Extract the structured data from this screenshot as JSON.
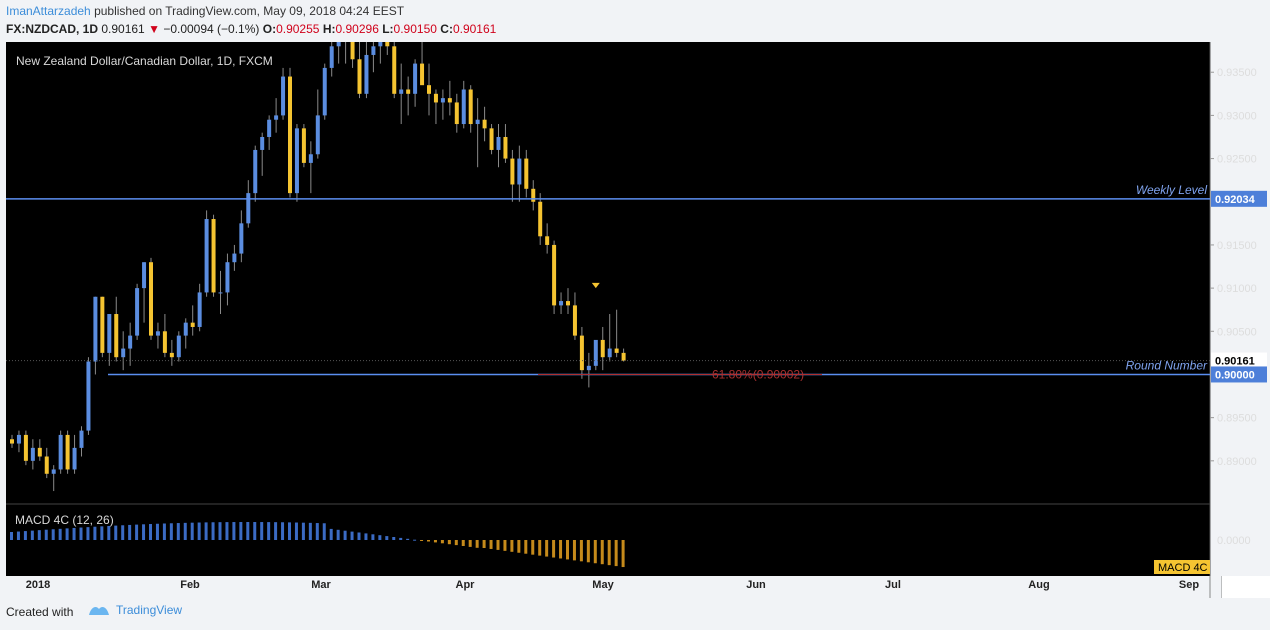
{
  "header": {
    "author": "ImanAttarzadeh",
    "published": "published on TradingView.com, May 09, 2018 04:24 EEST",
    "symbol": "FX:NZDCAD, 1D",
    "last": "0.90161",
    "change_arrow": "▼",
    "change": "−0.00094 (−0.1%)",
    "o_label": "O:",
    "o_val": "0.90255",
    "h_label": "H:",
    "h_val": "0.90296",
    "l_label": "L:",
    "l_val": "0.90150",
    "c_label": "C:",
    "c_val": "0.90161"
  },
  "footer": {
    "created_with": "Created with",
    "brand": "TradingView"
  },
  "colors": {
    "up": "#5b8de0",
    "down": "#f5c431",
    "level_line": "#5b8ef0",
    "fib_line": "#b03030",
    "price_tag": "#4d7fd9",
    "macd_up": "#3b6bc4",
    "macd_down": "#c58a1b"
  },
  "chart_data": {
    "type": "candlestick",
    "title": "New Zealand Dollar/Canadian Dollar, 1D, FXCM",
    "y_range": [
      0.885,
      0.9385
    ],
    "y_ticks": [
      "0.93500",
      "0.93000",
      "0.92500",
      "0.92034",
      "0.91500",
      "0.91000",
      "0.90500",
      "0.90161",
      "0.90000",
      "0.89500",
      "0.89000"
    ],
    "x_labels": [
      "2018",
      "Feb",
      "Mar",
      "Apr",
      "May",
      "Jun",
      "Jul",
      "Aug",
      "Sep"
    ],
    "levels": [
      {
        "label": "Weekly Level",
        "value": 0.92034
      },
      {
        "label": "Round Number",
        "value": 0.9
      }
    ],
    "fib_label": "61.80%(0.90002)",
    "current_price": "0.90161",
    "macd": {
      "label": "MACD 4C (12, 26)",
      "zero_tick": "0.0000",
      "tag": "MACD 4C"
    },
    "candles": [
      [
        0.8925,
        0.893,
        0.8915,
        0.892
      ],
      [
        0.892,
        0.8935,
        0.891,
        0.893
      ],
      [
        0.893,
        0.8935,
        0.8895,
        0.89
      ],
      [
        0.89,
        0.8925,
        0.889,
        0.8915
      ],
      [
        0.8915,
        0.8925,
        0.89,
        0.8905
      ],
      [
        0.8905,
        0.8915,
        0.888,
        0.8885
      ],
      [
        0.8885,
        0.8895,
        0.8865,
        0.889
      ],
      [
        0.889,
        0.8935,
        0.8885,
        0.893
      ],
      [
        0.893,
        0.8935,
        0.8885,
        0.889
      ],
      [
        0.889,
        0.893,
        0.8885,
        0.8915
      ],
      [
        0.8915,
        0.894,
        0.8905,
        0.8935
      ],
      [
        0.8935,
        0.902,
        0.893,
        0.9015
      ],
      [
        0.9015,
        0.909,
        0.9,
        0.909
      ],
      [
        0.909,
        0.909,
        0.902,
        0.9025
      ],
      [
        0.9025,
        0.907,
        0.901,
        0.907
      ],
      [
        0.907,
        0.909,
        0.9015,
        0.902
      ],
      [
        0.902,
        0.905,
        0.9005,
        0.903
      ],
      [
        0.903,
        0.906,
        0.901,
        0.9045
      ],
      [
        0.9045,
        0.9105,
        0.904,
        0.91
      ],
      [
        0.91,
        0.913,
        0.906,
        0.913
      ],
      [
        0.913,
        0.9135,
        0.904,
        0.9045
      ],
      [
        0.9045,
        0.906,
        0.903,
        0.905
      ],
      [
        0.905,
        0.907,
        0.902,
        0.9025
      ],
      [
        0.9025,
        0.904,
        0.901,
        0.902
      ],
      [
        0.902,
        0.905,
        0.9015,
        0.9045
      ],
      [
        0.9045,
        0.9065,
        0.903,
        0.906
      ],
      [
        0.906,
        0.908,
        0.9045,
        0.9055
      ],
      [
        0.9055,
        0.9105,
        0.905,
        0.9095
      ],
      [
        0.9095,
        0.919,
        0.909,
        0.918
      ],
      [
        0.918,
        0.9185,
        0.909,
        0.9095
      ],
      [
        0.9095,
        0.912,
        0.907,
        0.9095
      ],
      [
        0.9095,
        0.914,
        0.908,
        0.913
      ],
      [
        0.913,
        0.915,
        0.912,
        0.914
      ],
      [
        0.914,
        0.919,
        0.913,
        0.9175
      ],
      [
        0.9175,
        0.9225,
        0.917,
        0.921
      ],
      [
        0.921,
        0.9265,
        0.92,
        0.926
      ],
      [
        0.926,
        0.928,
        0.923,
        0.9275
      ],
      [
        0.9275,
        0.93,
        0.926,
        0.9295
      ],
      [
        0.9295,
        0.932,
        0.928,
        0.93
      ],
      [
        0.93,
        0.9355,
        0.9295,
        0.9345
      ],
      [
        0.9345,
        0.9355,
        0.9205,
        0.921
      ],
      [
        0.921,
        0.929,
        0.92,
        0.9285
      ],
      [
        0.9285,
        0.929,
        0.924,
        0.9245
      ],
      [
        0.9245,
        0.927,
        0.921,
        0.9255
      ],
      [
        0.9255,
        0.933,
        0.925,
        0.93
      ],
      [
        0.93,
        0.936,
        0.9295,
        0.9355
      ],
      [
        0.9355,
        0.9385,
        0.9345,
        0.938
      ],
      [
        0.938,
        0.9395,
        0.936,
        0.9385
      ],
      [
        0.9385,
        0.9395,
        0.936,
        0.939
      ],
      [
        0.939,
        0.9395,
        0.9355,
        0.9365
      ],
      [
        0.9365,
        0.9385,
        0.932,
        0.9325
      ],
      [
        0.9325,
        0.9395,
        0.932,
        0.937
      ],
      [
        0.937,
        0.939,
        0.935,
        0.938
      ],
      [
        0.938,
        0.9395,
        0.936,
        0.9385
      ],
      [
        0.9385,
        0.939,
        0.937,
        0.938
      ],
      [
        0.938,
        0.9395,
        0.932,
        0.9325
      ],
      [
        0.9325,
        0.936,
        0.929,
        0.933
      ],
      [
        0.933,
        0.9345,
        0.93,
        0.9325
      ],
      [
        0.9325,
        0.9365,
        0.931,
        0.936
      ],
      [
        0.936,
        0.9385,
        0.934,
        0.9335
      ],
      [
        0.9335,
        0.936,
        0.93,
        0.9325
      ],
      [
        0.9325,
        0.933,
        0.929,
        0.9315
      ],
      [
        0.9315,
        0.933,
        0.9295,
        0.932
      ],
      [
        0.932,
        0.934,
        0.93,
        0.9315
      ],
      [
        0.9315,
        0.9325,
        0.928,
        0.929
      ],
      [
        0.929,
        0.934,
        0.9285,
        0.933
      ],
      [
        0.933,
        0.9335,
        0.928,
        0.929
      ],
      [
        0.929,
        0.932,
        0.924,
        0.9295
      ],
      [
        0.9295,
        0.931,
        0.927,
        0.9285
      ],
      [
        0.9285,
        0.929,
        0.9255,
        0.926
      ],
      [
        0.926,
        0.929,
        0.924,
        0.9275
      ],
      [
        0.9275,
        0.929,
        0.9245,
        0.925
      ],
      [
        0.925,
        0.926,
        0.92,
        0.922
      ],
      [
        0.922,
        0.9265,
        0.92,
        0.925
      ],
      [
        0.925,
        0.926,
        0.9205,
        0.9215
      ],
      [
        0.9215,
        0.9225,
        0.919,
        0.92
      ],
      [
        0.92,
        0.921,
        0.915,
        0.916
      ],
      [
        0.916,
        0.9175,
        0.914,
        0.915
      ],
      [
        0.915,
        0.9155,
        0.907,
        0.908
      ],
      [
        0.908,
        0.9095,
        0.907,
        0.9085
      ],
      [
        0.9085,
        0.91,
        0.907,
        0.908
      ],
      [
        0.908,
        0.9095,
        0.904,
        0.9045
      ],
      [
        0.9045,
        0.9055,
        0.8995,
        0.9005
      ],
      [
        0.9005,
        0.9025,
        0.8985,
        0.901
      ],
      [
        0.901,
        0.9035,
        0.9005,
        0.904
      ],
      [
        0.904,
        0.9055,
        0.9005,
        0.902
      ],
      [
        0.902,
        0.907,
        0.9015,
        0.903
      ],
      [
        0.903,
        0.9075,
        0.902,
        0.9025
      ],
      [
        0.9025,
        0.903,
        0.9015,
        0.9016
      ]
    ]
  }
}
